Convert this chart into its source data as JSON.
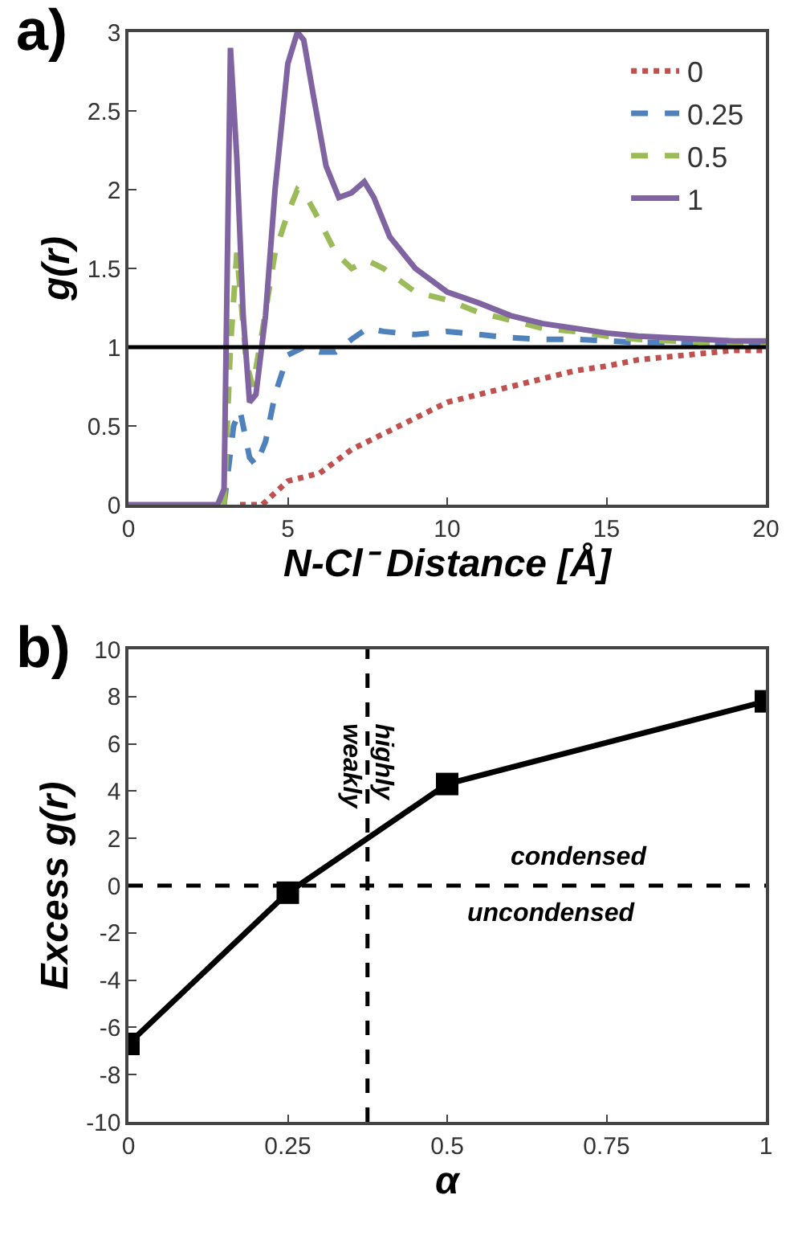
{
  "chart_data": [
    {
      "type": "line",
      "title": "a)",
      "xlabel": "N-Cl⁻ Distance [Å]",
      "ylabel": "g(r)",
      "xlim": [
        0,
        20
      ],
      "xticks": [
        0,
        5,
        10,
        15,
        20
      ],
      "ylim": [
        0,
        3
      ],
      "yticks": [
        0,
        0.5,
        1,
        1.5,
        2,
        2.5,
        3
      ],
      "grid": false,
      "legend": "top right",
      "marker": "none",
      "ref_lines": [
        {
          "axis": "y",
          "value": 1,
          "color": "#000000",
          "line_style": "solid"
        }
      ],
      "series": [
        {
          "name": "0",
          "color": "#c0504d",
          "line_style": "dotted",
          "x": [
            3.5,
            4.2,
            5,
            6,
            7,
            8,
            9,
            10,
            11,
            12,
            13,
            14,
            15,
            16,
            17,
            18,
            19,
            20
          ],
          "values": [
            0,
            0,
            0.15,
            0.2,
            0.35,
            0.45,
            0.55,
            0.65,
            0.7,
            0.75,
            0.8,
            0.85,
            0.88,
            0.92,
            0.94,
            0.96,
            0.98,
            0.98
          ]
        },
        {
          "name": "0.25",
          "color": "#4f81bd",
          "line_style": "dashed",
          "x": [
            3.0,
            3.3,
            3.5,
            3.8,
            4.0,
            4.3,
            4.6,
            5.0,
            5.5,
            6,
            6.5,
            7,
            7.5,
            8,
            9,
            10,
            11,
            12,
            13,
            14,
            15,
            16,
            17,
            18,
            19,
            20
          ],
          "values": [
            0,
            0.5,
            0.6,
            0.3,
            0.25,
            0.4,
            0.7,
            0.95,
            1.0,
            0.97,
            0.97,
            1.05,
            1.12,
            1.1,
            1.08,
            1.1,
            1.08,
            1.06,
            1.05,
            1.05,
            1.04,
            1.03,
            1.03,
            1.02,
            1.02,
            1.02
          ]
        },
        {
          "name": "0.5",
          "color": "#9bbb59",
          "line_style": "dashed",
          "x": [
            3.0,
            3.2,
            3.4,
            3.7,
            3.9,
            4.2,
            4.6,
            5.0,
            5.3,
            5.6,
            6.0,
            6.5,
            7.0,
            7.5,
            8,
            9,
            10,
            11,
            12,
            13,
            14,
            15,
            16,
            17,
            18,
            19,
            20
          ],
          "values": [
            0,
            1.0,
            1.6,
            0.9,
            0.75,
            1.1,
            1.6,
            1.85,
            2.0,
            1.95,
            1.8,
            1.6,
            1.5,
            1.55,
            1.5,
            1.35,
            1.3,
            1.22,
            1.17,
            1.12,
            1.1,
            1.07,
            1.05,
            1.04,
            1.03,
            1.02,
            1.02
          ]
        },
        {
          "name": "1",
          "color": "#8064a2",
          "line_style": "solid",
          "x": [
            0,
            2.8,
            3.0,
            3.1,
            3.2,
            3.4,
            3.6,
            3.8,
            4.0,
            4.3,
            4.6,
            5.0,
            5.3,
            5.5,
            5.8,
            6.2,
            6.6,
            7.0,
            7.4,
            7.7,
            8.2,
            9,
            10,
            11,
            12,
            13,
            14,
            15,
            16,
            17,
            18,
            19,
            20
          ],
          "values": [
            0,
            0,
            0.1,
            1.5,
            2.9,
            2.2,
            1.2,
            0.65,
            0.7,
            1.2,
            2.0,
            2.8,
            3.0,
            2.95,
            2.6,
            2.15,
            1.95,
            1.98,
            2.05,
            1.95,
            1.7,
            1.5,
            1.35,
            1.28,
            1.2,
            1.15,
            1.12,
            1.09,
            1.07,
            1.06,
            1.05,
            1.04,
            1.04
          ]
        }
      ]
    },
    {
      "type": "line",
      "title": "b)",
      "xlabel": "α",
      "ylabel": "Excess g(r)",
      "xlim": [
        0,
        1
      ],
      "xticks": [
        0,
        0.25,
        0.5,
        0.75,
        1
      ],
      "ylim": [
        -10,
        10
      ],
      "yticks": [
        -10,
        -8,
        -6,
        -4,
        -2,
        0,
        2,
        4,
        6,
        8,
        10
      ],
      "grid": false,
      "legend": false,
      "marker": "square",
      "line_style": "solid",
      "x": [
        0,
        0.25,
        0.5,
        1
      ],
      "series": [
        {
          "color": "#000000",
          "values": [
            -6.7,
            -0.3,
            4.3,
            7.8
          ]
        }
      ],
      "ref_lines": [
        {
          "axis": "y",
          "value": 0,
          "color": "#000000",
          "line_style": "dashed"
        },
        {
          "axis": "x",
          "value": 0.375,
          "color": "#000000",
          "line_style": "dashed"
        }
      ],
      "annotations": [
        "weakly",
        "highly",
        "condensed",
        "uncondensed"
      ]
    }
  ]
}
